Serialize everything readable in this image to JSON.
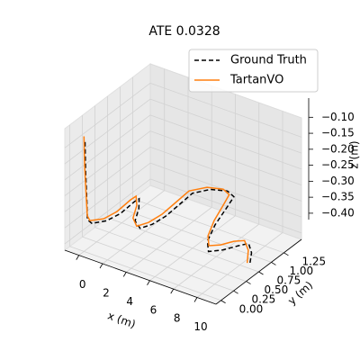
{
  "chart_data": {
    "type": "line3d",
    "title": "ATE 0.0328",
    "xlabel": "x (m)",
    "ylabel": "y (m)",
    "zlabel": "z (m)",
    "xlim": [
      -1.2,
      11.6
    ],
    "ylim": [
      -0.1,
      1.6
    ],
    "zlim": [
      -0.42,
      -0.04
    ],
    "xticks": [
      0,
      2,
      4,
      6,
      8,
      10
    ],
    "yticks": [
      {
        "value": 0,
        "label": "0.00"
      },
      {
        "value": 0.25,
        "label": "0.25"
      },
      {
        "value": 0.5,
        "label": "0.50"
      },
      {
        "value": 0.75,
        "label": "0.75"
      },
      {
        "value": 1.0,
        "label": "1.00"
      },
      {
        "value": 1.25,
        "label": "1.25"
      }
    ],
    "zticks": [
      {
        "value": -0.4,
        "label": "−0.40"
      },
      {
        "value": -0.35,
        "label": "−0.35"
      },
      {
        "value": -0.3,
        "label": "−0.30"
      },
      {
        "value": -0.25,
        "label": "−0.25"
      },
      {
        "value": -0.2,
        "label": "−0.20"
      },
      {
        "value": -0.15,
        "label": "−0.15"
      },
      {
        "value": -0.1,
        "label": "−0.10"
      }
    ],
    "grid": true,
    "legend": "upper right",
    "series": [
      {
        "name": "Ground Truth",
        "color": "#000000",
        "linestyle": "dashed",
        "x": [
          0.0,
          0.05,
          0.12,
          0.2,
          0.75,
          1.4,
          1.65,
          1.55,
          1.6,
          2.3,
          3.05,
          3.9,
          4.3,
          4.45,
          4.35,
          4.25,
          5.0,
          6.1,
          6.9,
          7.35,
          7.95,
          8.75,
          9.6,
          10.3,
          10.9,
          11.3,
          11.2,
          10.9
        ],
        "y": [
          0.02,
          0.02,
          0.03,
          0.02,
          -0.02,
          0.12,
          0.34,
          0.64,
          0.72,
          0.55,
          0.3,
          0.2,
          0.35,
          0.58,
          0.88,
          1.16,
          1.34,
          1.42,
          1.36,
          1.1,
          0.74,
          0.4,
          0.22,
          0.34,
          0.52,
          0.62,
          0.7,
          0.74
        ],
        "z": [
          -0.08,
          -0.17,
          -0.27,
          -0.32,
          -0.32,
          -0.32,
          -0.32,
          -0.32,
          -0.32,
          -0.32,
          -0.32,
          -0.32,
          -0.32,
          -0.32,
          -0.32,
          -0.32,
          -0.32,
          -0.32,
          -0.32,
          -0.32,
          -0.32,
          -0.32,
          -0.32,
          -0.32,
          -0.32,
          -0.32,
          -0.36,
          -0.4
        ]
      },
      {
        "name": "TartanVO",
        "color": "#ff7f0e",
        "linestyle": "solid",
        "x": [
          0.0,
          0.05,
          0.1,
          0.15,
          0.67,
          1.32,
          1.54,
          1.43,
          1.47,
          2.21,
          2.96,
          3.78,
          4.18,
          4.34,
          4.23,
          4.12,
          4.88,
          5.95,
          6.72,
          7.18,
          7.82,
          8.62,
          9.42,
          10.03,
          10.53,
          11.08,
          11.06,
          10.75
        ],
        "y": [
          0.0,
          0.0,
          0.02,
          0.03,
          -0.04,
          0.08,
          0.29,
          0.59,
          0.69,
          0.53,
          0.28,
          0.16,
          0.3,
          0.53,
          0.83,
          1.12,
          1.3,
          1.37,
          1.31,
          1.08,
          0.75,
          0.44,
          0.27,
          0.36,
          0.51,
          0.59,
          0.67,
          0.72
        ],
        "z": [
          -0.06,
          -0.15,
          -0.25,
          -0.31,
          -0.31,
          -0.31,
          -0.31,
          -0.31,
          -0.31,
          -0.31,
          -0.31,
          -0.31,
          -0.31,
          -0.31,
          -0.31,
          -0.31,
          -0.31,
          -0.31,
          -0.31,
          -0.31,
          -0.31,
          -0.31,
          -0.31,
          -0.31,
          -0.31,
          -0.31,
          -0.35,
          -0.4
        ]
      }
    ]
  }
}
